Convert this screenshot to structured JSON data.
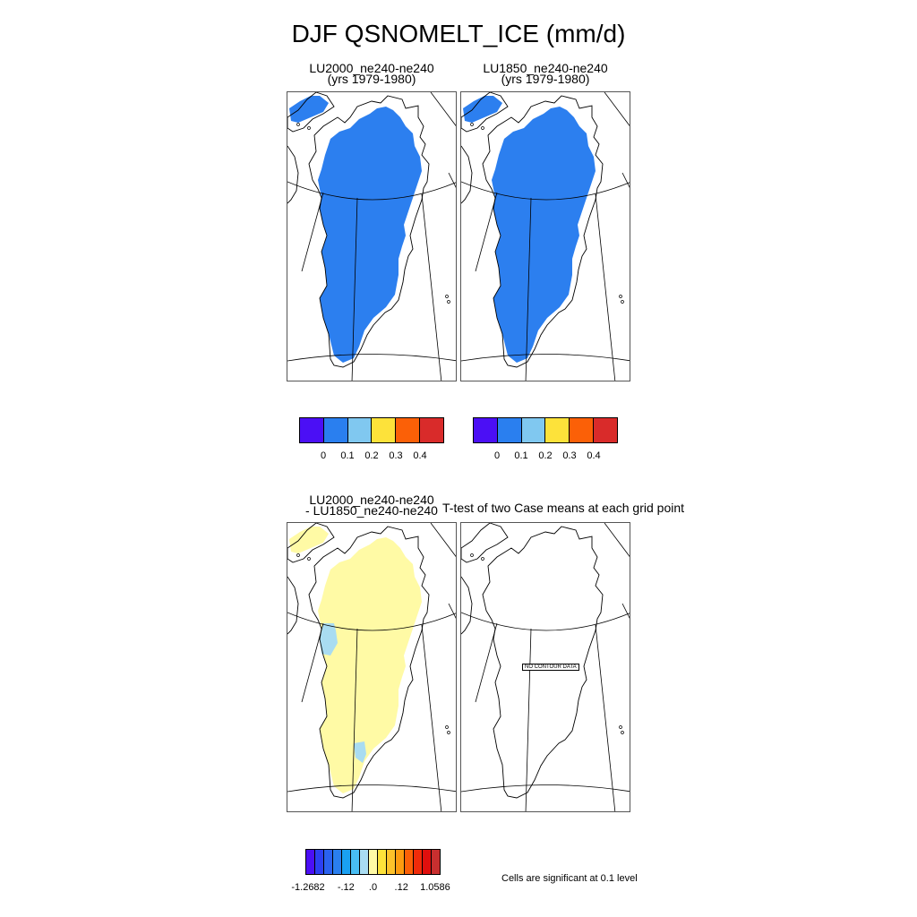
{
  "title": "DJF QSNOMELT_ICE (mm/d)",
  "panels": {
    "top_left": {
      "line1": "LU2000_ne240-ne240",
      "line2": "(yrs 1979-1980)"
    },
    "top_right": {
      "line1": "LU1850_ne240-ne240",
      "line2": "(yrs 1979-1980)"
    },
    "bottom_left": {
      "line1": "LU2000_ne240-ne240",
      "line2": "- LU1850_ne240-ne240"
    },
    "bottom_right": {
      "title": "T-test of two Case means at each grid point",
      "no_data": "NO CONTOUR DATA"
    }
  },
  "legend_top": {
    "colors": [
      "#4b0ff5",
      "#2a7fef",
      "#80c8f0",
      "#fde23a",
      "#fb6007",
      "#d92b2a"
    ],
    "labels": [
      "0",
      "0.1",
      "0.2",
      "0.3",
      "0.4"
    ]
  },
  "legend_diff": {
    "colors": [
      "#4b0ff5",
      "#2c3ff2",
      "#2a62f0",
      "#2a7fef",
      "#1aa0f2",
      "#48bdf3",
      "#a9dcf1",
      "#fffaa5",
      "#fde23a",
      "#fdc22a",
      "#fd9b0f",
      "#fb6007",
      "#f02b0a",
      "#e00f0d",
      "#c82f2f"
    ],
    "labels": [
      "-1.2682",
      "-.12",
      ".0",
      ".12",
      "1.0586"
    ]
  },
  "significance_note": "Cells are significant at 0.1 level",
  "map": {
    "field_fill_colors": {
      "melt": "#2c7fef",
      "diff_positive": "#fffaa5",
      "diff_negative": "#a9dcf1"
    },
    "coastline_color": "#000000"
  }
}
